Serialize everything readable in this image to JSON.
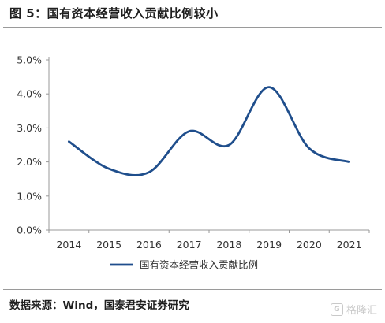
{
  "figure": {
    "title": "图 5：国有资本经营收入贡献比例较小",
    "source": "数据来源：Wind，国泰君安证券研究"
  },
  "watermark": {
    "logo_letter": "G",
    "text": "格隆汇"
  },
  "colors": {
    "series": "#1f4e8c",
    "axis": "#999999",
    "text": "#333333"
  },
  "chart_data": {
    "type": "line",
    "categories": [
      "2014",
      "2015",
      "2016",
      "2017",
      "2018",
      "2019",
      "2020",
      "2021"
    ],
    "series": [
      {
        "name": "国有资本经营收入贡献比例",
        "values": [
          2.6,
          1.8,
          1.7,
          2.9,
          2.5,
          4.2,
          2.4,
          2.0
        ]
      }
    ],
    "yticks": [
      "0.0%",
      "1.0%",
      "2.0%",
      "3.0%",
      "4.0%",
      "5.0%"
    ],
    "ylim": [
      0,
      5
    ],
    "ylabel": "",
    "xlabel": "",
    "grid": false,
    "legend": "bottom"
  }
}
